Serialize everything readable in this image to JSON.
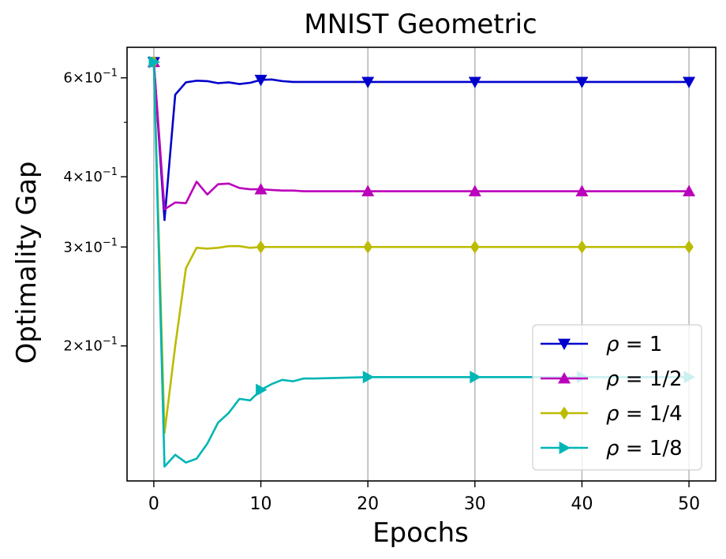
{
  "chart_data": {
    "type": "line",
    "title": "MNIST Geometric",
    "xlabel": "Epochs",
    "ylabel": "Optimality Gap",
    "yscale": "log",
    "xlim": [
      -2.5,
      52.5
    ],
    "ylim": [
      0.115,
      0.68
    ],
    "grid": "x-only",
    "legend_position": "lower-right",
    "xticks": [
      0,
      10,
      20,
      30,
      40,
      50
    ],
    "xtick_labels": [
      "0",
      "10",
      "20",
      "30",
      "40",
      "50"
    ],
    "yticks_major": [
      0.2,
      0.3,
      0.4,
      0.6
    ],
    "ytick_labels": [
      {
        "mantissa": "2",
        "base": "10",
        "exp": "−1"
      },
      {
        "mantissa": "3",
        "base": "10",
        "exp": "−1"
      },
      {
        "mantissa": "4",
        "base": "10",
        "exp": "−1"
      },
      {
        "mantissa": "6",
        "base": "10",
        "exp": "−1"
      }
    ],
    "yticks_minor": [
      0.5
    ],
    "marker_every": 10,
    "series": [
      {
        "name": "ρ = 1",
        "symbol": "ρ",
        "label_suffix": " = 1",
        "color": "#0000cc",
        "marker": "triangle-down",
        "x": [
          0,
          1,
          2,
          3,
          4,
          5,
          6,
          7,
          8,
          9,
          10,
          11,
          12,
          13,
          14,
          15,
          20,
          25,
          30,
          35,
          40,
          45,
          50
        ],
        "y": [
          0.64,
          0.335,
          0.56,
          0.589,
          0.593,
          0.592,
          0.587,
          0.589,
          0.585,
          0.588,
          0.595,
          0.596,
          0.592,
          0.59,
          0.59,
          0.59,
          0.59,
          0.59,
          0.59,
          0.59,
          0.59,
          0.59,
          0.59
        ]
      },
      {
        "name": "ρ = 1/2",
        "symbol": "ρ",
        "label_suffix": " = 1/2",
        "color": "#bb00bb",
        "marker": "triangle-up",
        "x": [
          0,
          1,
          2,
          3,
          4,
          5,
          6,
          7,
          8,
          9,
          10,
          11,
          12,
          13,
          14,
          15,
          20,
          25,
          30,
          35,
          40,
          45,
          50
        ],
        "y": [
          0.64,
          0.35,
          0.36,
          0.359,
          0.392,
          0.372,
          0.388,
          0.389,
          0.382,
          0.38,
          0.38,
          0.379,
          0.378,
          0.378,
          0.377,
          0.377,
          0.377,
          0.377,
          0.377,
          0.377,
          0.377,
          0.377,
          0.377
        ]
      },
      {
        "name": "ρ = 1/4",
        "symbol": "ρ",
        "label_suffix": " = 1/4",
        "color": "#bbbb00",
        "marker": "diamond",
        "x": [
          0,
          1,
          2,
          3,
          4,
          5,
          6,
          7,
          8,
          9,
          10,
          11,
          12,
          13,
          14,
          15,
          20,
          25,
          30,
          35,
          40,
          45,
          50
        ],
        "y": [
          0.64,
          0.14,
          0.2,
          0.275,
          0.299,
          0.298,
          0.299,
          0.301,
          0.301,
          0.299,
          0.3,
          0.3,
          0.3,
          0.3,
          0.3,
          0.3,
          0.3,
          0.3,
          0.3,
          0.3,
          0.3,
          0.3,
          0.3
        ]
      },
      {
        "name": "ρ = 1/8",
        "symbol": "ρ",
        "label_suffix": " = 1/8",
        "color": "#00b5b5",
        "marker": "triangle-right",
        "x": [
          0,
          1,
          2,
          3,
          4,
          5,
          6,
          7,
          8,
          9,
          10,
          11,
          12,
          13,
          14,
          15,
          20,
          25,
          30,
          35,
          40,
          45,
          50
        ],
        "y": [
          0.64,
          0.122,
          0.128,
          0.124,
          0.126,
          0.134,
          0.146,
          0.152,
          0.161,
          0.16,
          0.167,
          0.171,
          0.174,
          0.173,
          0.175,
          0.175,
          0.176,
          0.176,
          0.176,
          0.176,
          0.176,
          0.176,
          0.176
        ]
      }
    ]
  }
}
